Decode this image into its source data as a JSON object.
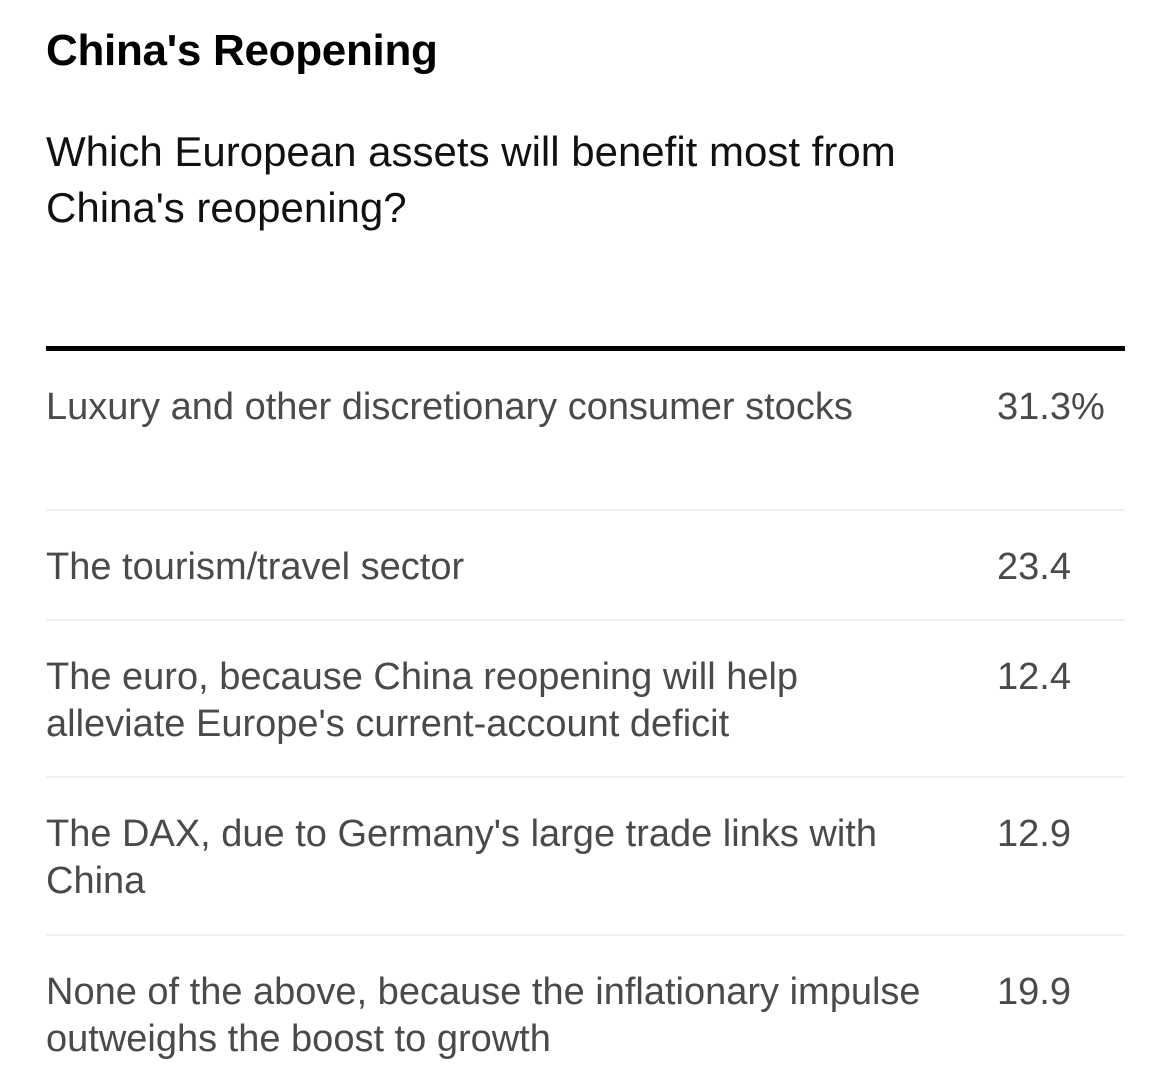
{
  "header": {
    "title": "China's Reopening",
    "subtitle": "Which European assets will benefit most from China's reopening?"
  },
  "chart_data": {
    "type": "table",
    "title": "China's Reopening",
    "subtitle": "Which European assets will benefit most from China's reopening?",
    "rows": [
      {
        "label": "Luxury and other discretionary consumer stocks",
        "value": 31.3,
        "display": "31.3%"
      },
      {
        "label": "The tourism/travel sector",
        "value": 23.4,
        "display": "23.4"
      },
      {
        "label": "The euro, because China reopening will help alleviate Europe's current-account deficit",
        "value": 12.4,
        "display": "12.4"
      },
      {
        "label": "The DAX, due to Germany's large trade links with China",
        "value": 12.9,
        "display": "12.9"
      },
      {
        "label": "None of the above, because the inflationary impulse outweighs the boost to growth",
        "value": 19.9,
        "display": "19.9"
      }
    ]
  }
}
